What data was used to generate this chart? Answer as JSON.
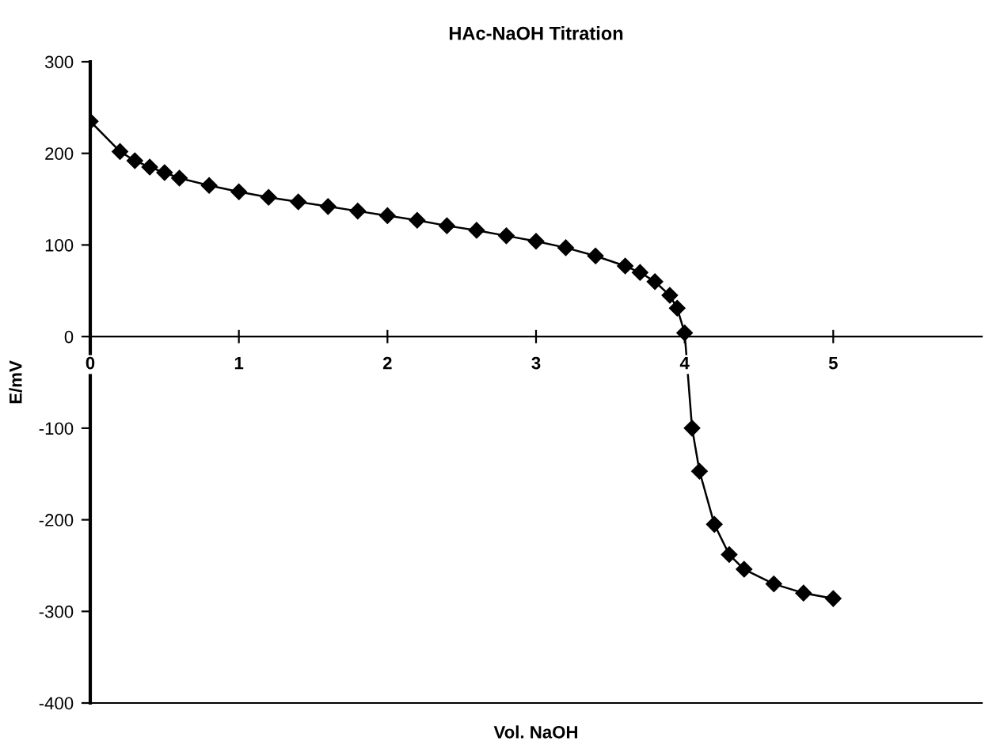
{
  "chart_data": {
    "type": "line",
    "title": "HAc-NaOH Titration",
    "xlabel": "Vol. NaOH",
    "ylabel": "E/mV",
    "x": [
      0,
      0.2,
      0.3,
      0.4,
      0.5,
      0.6,
      0.8,
      1.0,
      1.2,
      1.4,
      1.6,
      1.8,
      2.0,
      2.2,
      2.4,
      2.6,
      2.8,
      3.0,
      3.2,
      3.4,
      3.6,
      3.7,
      3.8,
      3.9,
      3.95,
      4.0,
      4.05,
      4.1,
      4.2,
      4.3,
      4.4,
      4.6,
      4.8,
      5.0
    ],
    "series": [
      {
        "color": "#000000",
        "values": [
          235,
          202,
          192,
          185,
          179,
          173,
          165,
          158,
          152,
          147,
          142,
          137,
          132,
          127,
          121,
          116,
          110,
          104,
          97,
          88,
          77,
          70,
          60,
          45,
          31,
          4,
          -100,
          -147,
          -205,
          -238,
          -254,
          -270,
          -280,
          -286
        ]
      }
    ],
    "xlim": [
      0,
      6
    ],
    "xticks": [
      0,
      1,
      2,
      3,
      4,
      5
    ],
    "ylim": [
      -400,
      300
    ],
    "yticks": [
      -400,
      -300,
      -200,
      -100,
      0,
      100,
      200,
      300
    ],
    "marker": "diamond",
    "line_style": "solid",
    "grid": false
  }
}
